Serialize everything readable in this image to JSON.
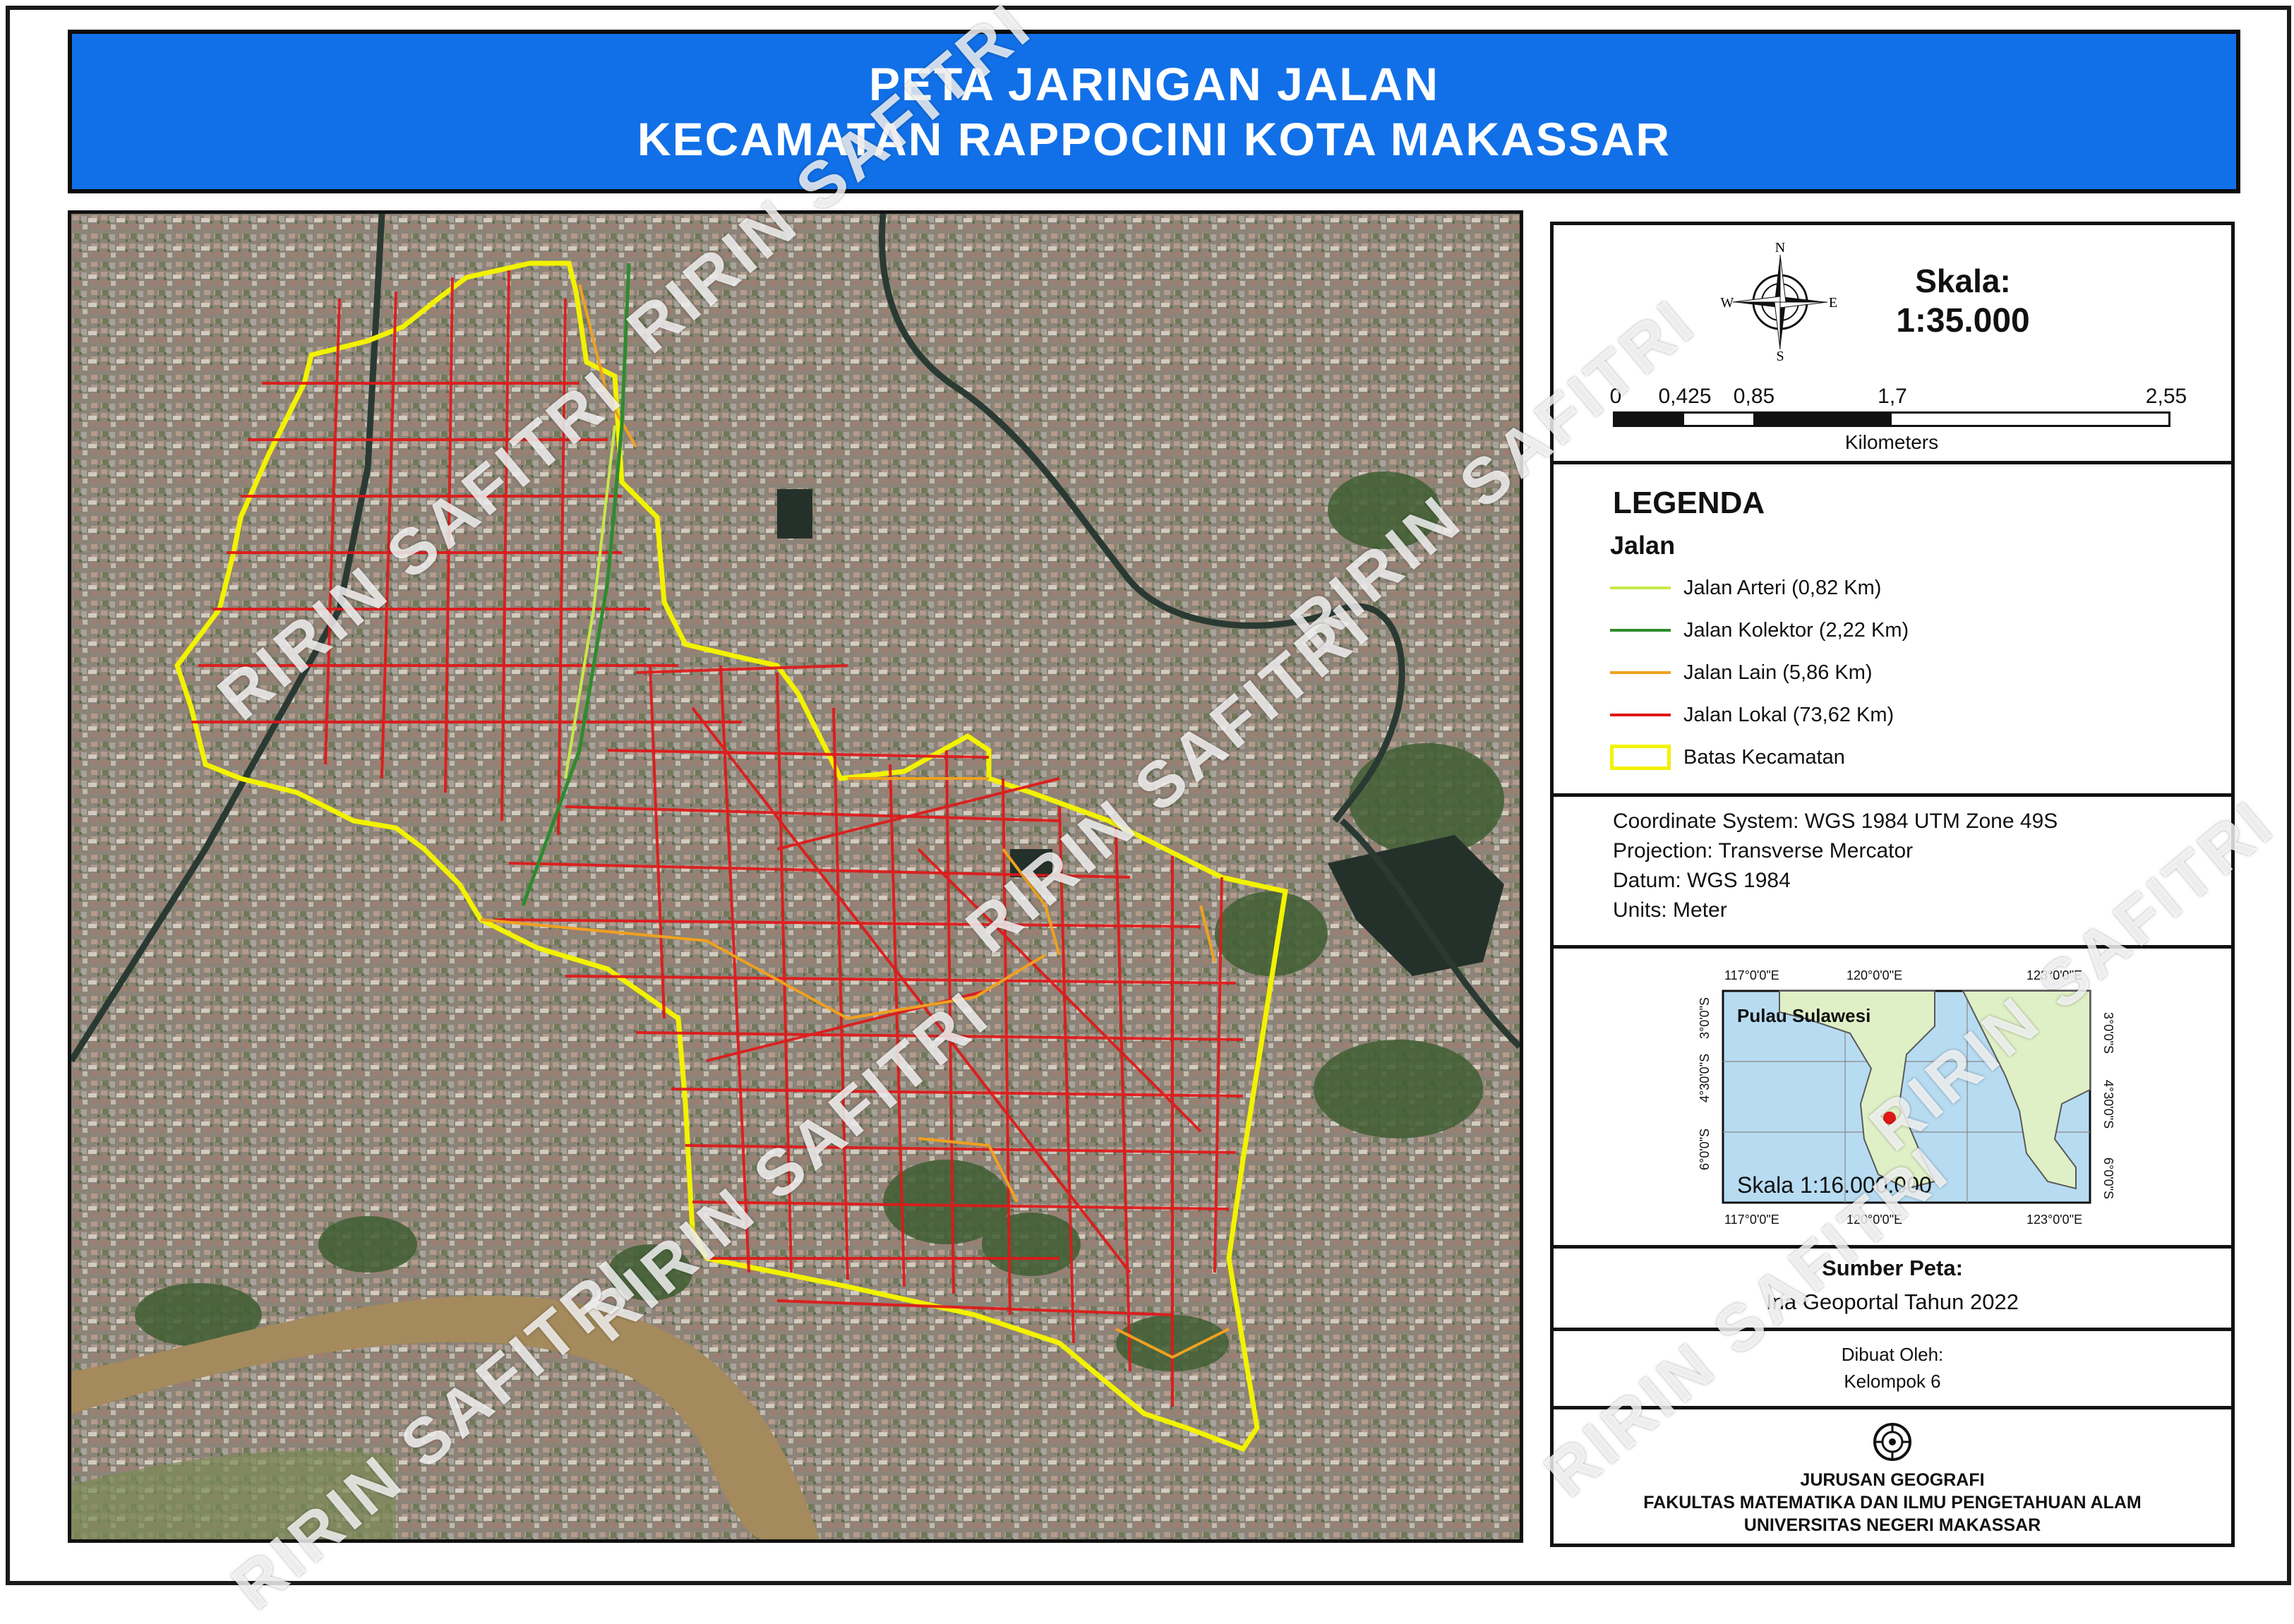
{
  "title": {
    "line1": "PETA JARINGAN JALAN",
    "line2": "KECAMATAN RAPPOCINI KOTA MAKASSAR"
  },
  "colors": {
    "title_bg": "#1170e8",
    "jalan_arteri": "#c7e84a",
    "jalan_kolektor": "#2e8b2e",
    "jalan_lain": "#f0a020",
    "jalan_lokal": "#e01818",
    "batas_kecamatan": "#f2f200"
  },
  "north_arrow": {
    "n": "N",
    "s": "S",
    "e": "E",
    "w": "W"
  },
  "scale": {
    "label": "Skala:",
    "value": "1:35.000",
    "ticks": [
      "0",
      "0,425",
      "0,85",
      "1,7",
      "2,55"
    ],
    "unit": "Kilometers"
  },
  "legend": {
    "title": "LEGENDA",
    "subtitle": "Jalan",
    "items": [
      {
        "label": "Jalan Arteri (0,82 Km)",
        "color": "#c7e84a",
        "kind": "line"
      },
      {
        "label": "Jalan Kolektor (2,22 Km)",
        "color": "#2e8b2e",
        "kind": "line"
      },
      {
        "label": "Jalan Lain (5,86 Km)",
        "color": "#f0a020",
        "kind": "line"
      },
      {
        "label": "Jalan Lokal (73,62 Km)",
        "color": "#e01818",
        "kind": "line"
      },
      {
        "label": "Batas Kecamatan",
        "color": "#f2f200",
        "kind": "box"
      }
    ]
  },
  "coordinate_info": [
    "Coordinate System: WGS 1984 UTM Zone 49S",
    "Projection: Transverse Mercator",
    "Datum: WGS 1984",
    "Units: Meter"
  ],
  "inset": {
    "label": "Pulau Sulawesi",
    "scale": "Skala 1:16.000.000",
    "lon_labels": [
      "117°0'0\"E",
      "120°0'0\"E",
      "123°0'0\"E"
    ],
    "lat_labels": [
      "3°0'0\"S",
      "4°30'0\"S",
      "6°0'0\"S"
    ]
  },
  "source": {
    "title": "Sumber Peta:",
    "text": "Ina Geoportal Tahun 2022"
  },
  "made_by": {
    "title": "Dibuat Oleh:",
    "text": "Kelompok 6"
  },
  "institution": {
    "line1": "JURUSAN GEOGRAFI",
    "line2": "FAKULTAS MATEMATIKA DAN ILMU PENGETAHUAN ALAM",
    "line3": "UNIVERSITAS NEGERI MAKASSAR"
  },
  "watermark": "RIRIN SAFITRI"
}
